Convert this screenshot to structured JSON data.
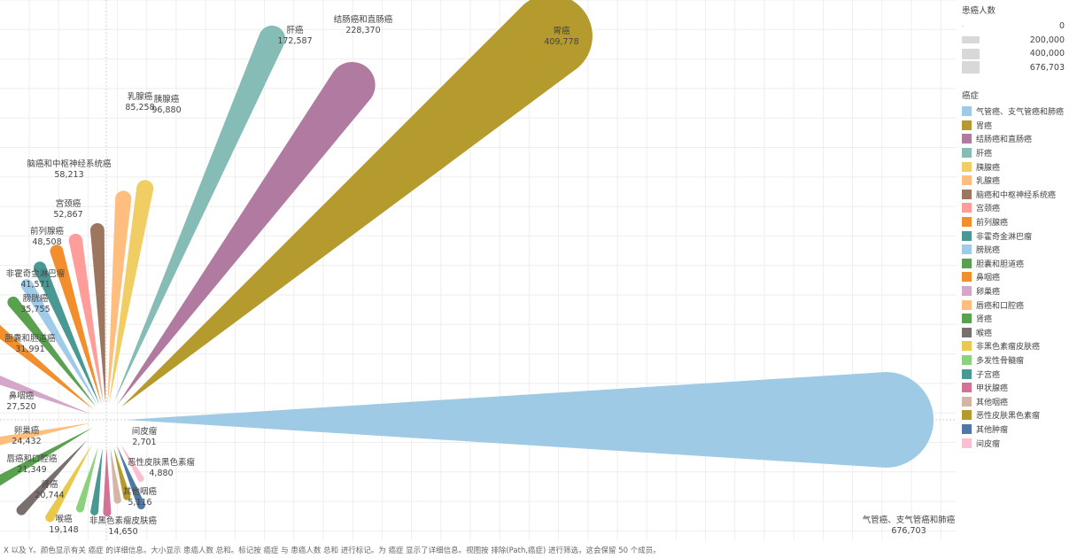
{
  "chart_data": {
    "type": "radial-tapered-bar",
    "categories": [
      {
        "name": "气管癌、支气管癌和肺癌",
        "value": 676703,
        "color": "#9fcae6"
      },
      {
        "name": "胃癌",
        "value": 409778,
        "color": "#b59a2d"
      },
      {
        "name": "结肠癌和直肠癌",
        "value": 228370,
        "color": "#b07aa1"
      },
      {
        "name": "肝癌",
        "value": 172587,
        "color": "#86bcb6"
      },
      {
        "name": "胰腺癌",
        "value": 96880,
        "color": "#f1ce63"
      },
      {
        "name": "乳腺癌",
        "value": 85258,
        "color": "#ffbe7d"
      },
      {
        "name": "脑癌和中枢神经系统癌",
        "value": 58213,
        "color": "#9d7660"
      },
      {
        "name": "宫颈癌",
        "value": 52867,
        "color": "#ff9d9a"
      },
      {
        "name": "前列腺癌",
        "value": 48508,
        "color": "#f28e2b"
      },
      {
        "name": "非霍奇金淋巴瘤",
        "value": 41571,
        "color": "#499894"
      },
      {
        "name": "膀胱癌",
        "value": 35755,
        "color": "#a0cbe8"
      },
      {
        "name": "胆囊和胆道癌",
        "value": 31991,
        "color": "#59a14f"
      },
      {
        "name": "鼻咽癌",
        "value": 27520,
        "color": "#f28e2b"
      },
      {
        "name": "卵巢癌",
        "value": 24432,
        "color": "#d4a6c8"
      },
      {
        "name": "唇癌和口腔癌",
        "value": 21349,
        "color": "#ffbe7d"
      },
      {
        "name": "肾癌",
        "value": 20744,
        "color": "#59a14f"
      },
      {
        "name": "喉癌",
        "value": 19148,
        "color": "#79706e"
      },
      {
        "name": "非黑色素瘤皮肤癌",
        "value": 14650,
        "color": "#e9c94c"
      },
      {
        "name": "多发性骨髓瘤",
        "value": null,
        "color": "#8cd17d"
      },
      {
        "name": "子宫癌",
        "value": null,
        "color": "#499894"
      },
      {
        "name": "甲状腺癌",
        "value": null,
        "color": "#d37295"
      },
      {
        "name": "其他咽癌",
        "value": 5116,
        "color": "#d7b5a6"
      },
      {
        "name": "恶性皮肤黑色素瘤",
        "value": 4880,
        "color": "#b59a2d"
      },
      {
        "name": "其他肿瘤",
        "value": null,
        "color": "#4e79a7"
      },
      {
        "name": "间皮瘤",
        "value": 2701,
        "color": "#fabfd2"
      }
    ],
    "size_legend": {
      "title": "患癌人数",
      "values": [
        "0",
        "200,000",
        "400,000",
        "676,703"
      ]
    },
    "color_legend_title": "癌症",
    "grid": true
  },
  "footnote": "X 以及 Y。颜色显示有关 癌症 的详细信息。大小显示 患癌人数 总和。标记按 癌症 与 患癌人数 总和 进行标记。为 癌症 显示了详细信息。视图按 排除(Path,癌症) 进行筛选，这会保留 50 个成员。"
}
